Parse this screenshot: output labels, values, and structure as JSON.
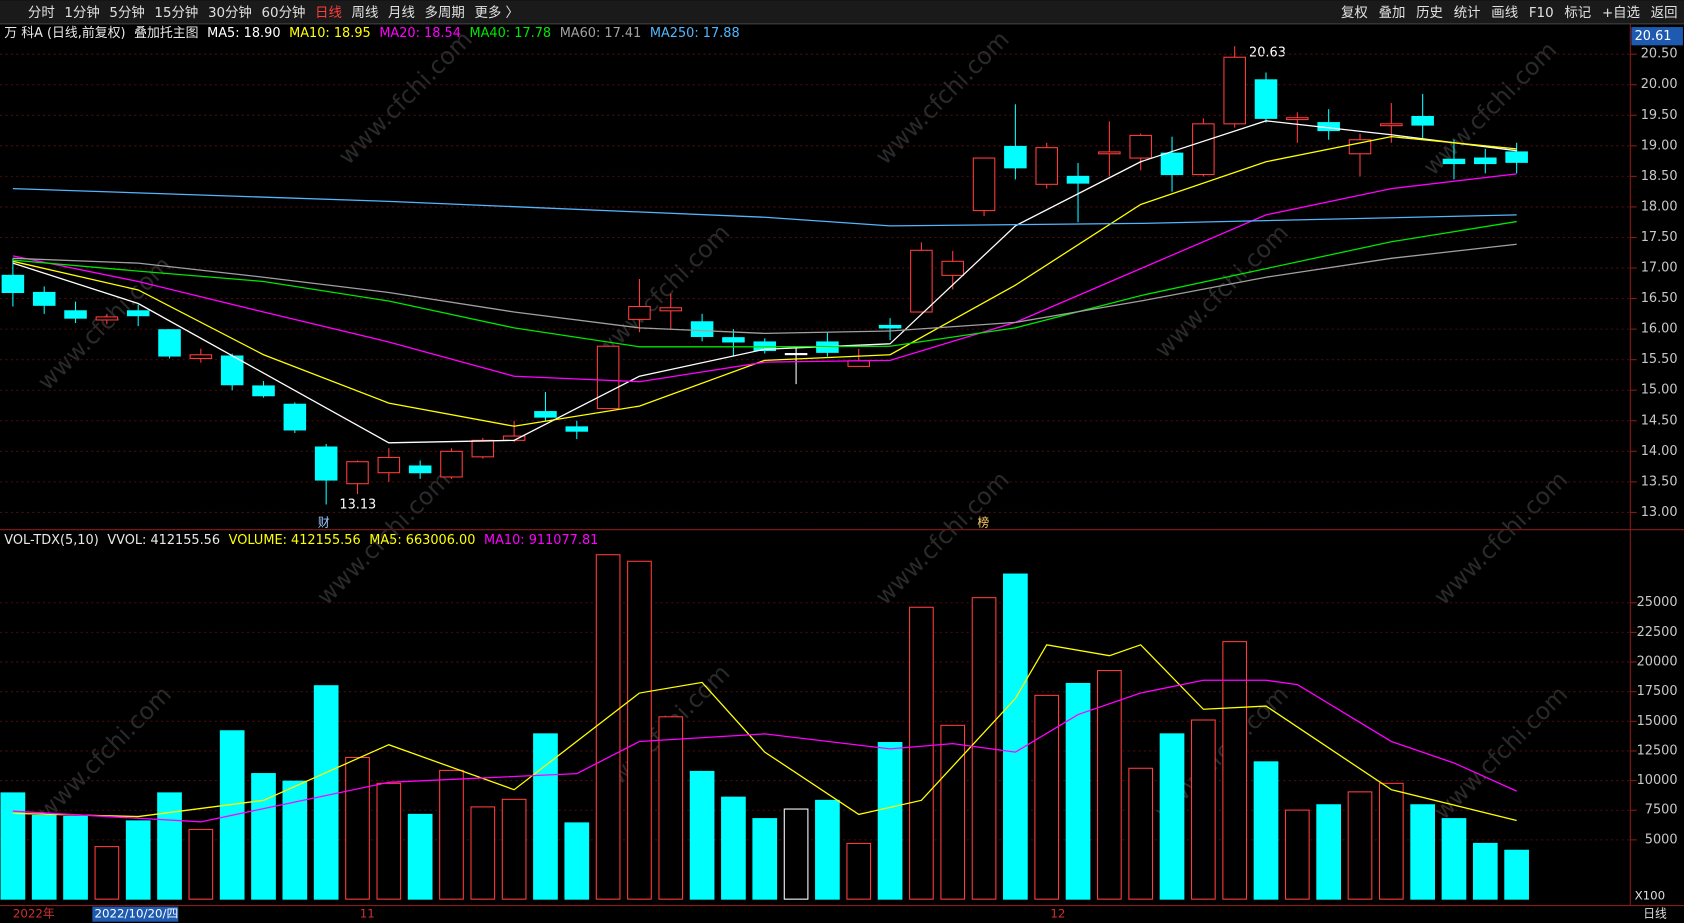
{
  "toolbar": {
    "left": [
      {
        "label": "分时"
      },
      {
        "label": "1分钟"
      },
      {
        "label": "5分钟"
      },
      {
        "label": "15分钟"
      },
      {
        "label": "30分钟"
      },
      {
        "label": "60分钟"
      },
      {
        "label": "日线",
        "active": true
      },
      {
        "label": "周线"
      },
      {
        "label": "月线"
      },
      {
        "label": "多周期"
      },
      {
        "label": "更多 〉"
      }
    ],
    "right": [
      "复权",
      "叠加",
      "历史",
      "统计",
      "画线",
      "F10",
      "标记",
      "+自选",
      "返回"
    ]
  },
  "chart_data": [
    {
      "type": "candlestick",
      "title": "万 科A (日线,前复权)",
      "subtitle": "叠加托主图",
      "open": [
        16.88,
        16.6,
        16.3,
        16.15,
        16.3,
        15.99,
        15.52,
        15.56,
        15.07,
        14.77,
        14.07,
        13.47,
        13.65,
        13.76,
        13.58,
        13.91,
        14.18,
        14.65,
        14.4,
        14.7,
        16.16,
        16.3,
        16.12,
        15.86,
        15.79,
        15.6,
        15.79,
        15.39,
        16.06,
        16.28,
        16.88,
        17.94,
        18.99,
        18.37,
        18.5,
        18.87,
        18.8,
        18.88,
        18.53,
        19.36,
        20.08,
        19.43,
        19.38,
        18.87,
        19.33,
        19.48,
        18.78,
        18.8,
        18.9
      ],
      "close": [
        16.6,
        16.39,
        16.18,
        16.2,
        16.22,
        15.56,
        15.58,
        15.09,
        14.91,
        14.35,
        13.53,
        13.83,
        13.9,
        13.65,
        14.0,
        14.18,
        14.25,
        14.56,
        14.33,
        15.72,
        16.37,
        16.35,
        15.88,
        15.79,
        15.65,
        15.6,
        15.62,
        15.48,
        16.02,
        17.29,
        17.11,
        18.8,
        18.64,
        18.97,
        18.39,
        18.9,
        19.17,
        18.53,
        19.36,
        20.45,
        19.45,
        19.46,
        19.25,
        19.1,
        19.36,
        19.34,
        18.71,
        18.71,
        18.73
      ],
      "high": [
        17.16,
        16.7,
        16.45,
        16.25,
        16.4,
        16.0,
        15.68,
        15.6,
        15.15,
        14.8,
        14.12,
        13.85,
        14.05,
        13.85,
        14.05,
        14.22,
        14.5,
        14.97,
        14.5,
        15.72,
        16.82,
        16.58,
        16.25,
        16.0,
        15.85,
        15.72,
        15.95,
        15.68,
        16.18,
        17.42,
        17.28,
        18.8,
        19.68,
        19.05,
        18.72,
        19.4,
        19.2,
        19.15,
        19.45,
        20.63,
        20.2,
        19.55,
        19.6,
        19.2,
        19.7,
        19.85,
        19.1,
        18.95,
        19.05
      ],
      "low": [
        16.37,
        16.25,
        16.1,
        16.08,
        16.05,
        15.52,
        15.45,
        15.0,
        14.88,
        14.3,
        13.13,
        13.3,
        13.5,
        13.55,
        13.55,
        13.88,
        14.15,
        14.5,
        14.2,
        14.7,
        15.95,
        16.0,
        15.8,
        15.55,
        15.6,
        15.1,
        15.55,
        15.38,
        15.82,
        16.28,
        16.65,
        17.85,
        18.45,
        18.3,
        17.75,
        18.5,
        18.6,
        18.25,
        18.5,
        19.3,
        19.38,
        19.05,
        19.1,
        18.5,
        19.05,
        19.1,
        18.45,
        18.55,
        18.55
      ],
      "up_color": "#ff3c3c",
      "down_color": "#00ffff",
      "flat_color": "#ffffff",
      "ylim": [
        12.77,
        20.68
      ],
      "yticks": [
        {
          "value": 13,
          "label": "13.00"
        },
        {
          "value": 13.5,
          "label": "13.50"
        },
        {
          "value": 14,
          "label": "14.00"
        },
        {
          "value": 14.5,
          "label": "14.50"
        },
        {
          "value": 15,
          "label": "15.00"
        },
        {
          "value": 15.5,
          "label": "15.50"
        },
        {
          "value": 16,
          "label": "16.00"
        },
        {
          "value": 16.5,
          "label": "16.50"
        },
        {
          "value": 17,
          "label": "17.00"
        },
        {
          "value": 17.5,
          "label": "17.50"
        },
        {
          "value": 18,
          "label": "18.00"
        },
        {
          "value": 18.5,
          "label": "18.50"
        },
        {
          "value": 19,
          "label": "19.00"
        },
        {
          "value": 19.5,
          "label": "19.50"
        },
        {
          "value": 20,
          "label": "20.00"
        },
        {
          "value": 20.5,
          "label": "20.50"
        }
      ],
      "grid": true,
      "current_label": "20.61",
      "annotations": [
        "20.63",
        "13.13",
        "财",
        "榜"
      ],
      "lines": [
        {
          "name": "MA5: 18.90",
          "color": "#ffffff",
          "x": [
            0,
            4,
            8,
            12,
            16,
            20,
            24,
            28,
            32,
            36,
            40,
            44,
            48
          ],
          "values": [
            17.08,
            16.42,
            15.28,
            14.14,
            14.18,
            15.23,
            15.67,
            15.76,
            17.69,
            18.74,
            19.41,
            19.18,
            18.92
          ]
        },
        {
          "name": "MA10: 18.95",
          "color": "#ffff00",
          "x": [
            0,
            4,
            8,
            12,
            16,
            20,
            24,
            28,
            32,
            36,
            40,
            44,
            48
          ],
          "values": [
            17.11,
            16.64,
            15.58,
            14.79,
            14.41,
            14.74,
            15.49,
            15.58,
            16.72,
            18.04,
            18.74,
            19.15,
            18.95
          ]
        },
        {
          "name": "MA20: 18.54",
          "color": "#ff00ff",
          "x": [
            0,
            4,
            8,
            12,
            16,
            20,
            24,
            28,
            32,
            36,
            40,
            44,
            48
          ],
          "values": [
            17.2,
            16.78,
            16.28,
            15.79,
            15.23,
            15.14,
            15.46,
            15.49,
            16.11,
            16.99,
            17.87,
            18.3,
            18.54
          ]
        },
        {
          "name": "MA40: 17.78",
          "color": "#00e600",
          "x": [
            0,
            4,
            8,
            12,
            16,
            20,
            24,
            28,
            32,
            36,
            40,
            44,
            48
          ],
          "values": [
            17.13,
            16.95,
            16.78,
            16.46,
            16.02,
            15.71,
            15.71,
            15.72,
            16.02,
            16.55,
            16.99,
            17.43,
            17.76
          ]
        },
        {
          "name": "MA60: 17.41",
          "color": "#a0a0a0",
          "x": [
            0,
            4,
            8,
            12,
            16,
            20,
            24,
            28,
            32,
            36,
            40,
            44,
            48
          ],
          "values": [
            17.16,
            17.08,
            16.85,
            16.6,
            16.28,
            16.02,
            15.93,
            15.97,
            16.11,
            16.46,
            16.85,
            17.16,
            17.39
          ]
        },
        {
          "name": "MA250: 17.88",
          "color": "#52b6ff",
          "x": [
            0,
            12,
            24,
            28,
            36,
            48
          ],
          "values": [
            18.3,
            18.09,
            17.83,
            17.69,
            17.73,
            17.87
          ]
        }
      ]
    },
    {
      "type": "bar",
      "title": "VOL-TDX(5,10)",
      "subtitle": "VVOL: 412155.56",
      "volume_label": "VOLUME: 412155.56",
      "unit": "X100",
      "values": [
        8960,
        7060,
        6970,
        4430,
        6600,
        8960,
        5880,
        14200,
        10590,
        9950,
        18000,
        11950,
        9770,
        7150,
        10860,
        7780,
        8420,
        13940,
        6430,
        29050,
        28500,
        15380,
        10770,
        8600,
        6790,
        7600,
        8330,
        4700,
        13210,
        24620,
        14660,
        25430,
        27420,
        17190,
        18190,
        19280,
        11040,
        13940,
        15110,
        21720,
        11580,
        7510,
        7960,
        9050,
        9770,
        7960,
        6790,
        4700,
        4122
      ],
      "ylim": [
        0,
        30800
      ],
      "yticks": [
        5000,
        7500,
        10000,
        12500,
        15000,
        17500,
        20000,
        22500,
        25000
      ],
      "grid": true,
      "lines": [
        {
          "name": "MA5: 663006.00",
          "color": "#ffff00",
          "x": [
            0,
            4,
            8,
            12,
            16,
            20,
            22,
            24,
            27,
            29,
            32,
            33,
            35,
            36,
            38,
            40,
            44,
            48
          ],
          "values": [
            7240,
            6970,
            8330,
            13030,
            9230,
            17380,
            18280,
            12400,
            7150,
            8330,
            16920,
            21450,
            20540,
            21450,
            16020,
            16290,
            9230,
            6630
          ]
        },
        {
          "name": "MA10: 911077.81",
          "color": "#ff00ff",
          "x": [
            0,
            6,
            12,
            18,
            20,
            24,
            28,
            30,
            32,
            34,
            36,
            38,
            40,
            41,
            44,
            46,
            48
          ],
          "values": [
            7420,
            6520,
            9860,
            10590,
            13300,
            13940,
            12670,
            13120,
            12400,
            15570,
            17380,
            18460,
            18460,
            18100,
            13300,
            11490,
            9111
          ]
        }
      ]
    }
  ],
  "x_labels": [
    "2022年",
    "2022/10/20/四",
    "11",
    "12"
  ],
  "period_label": "日线",
  "watermark": "www.cfchi.com"
}
